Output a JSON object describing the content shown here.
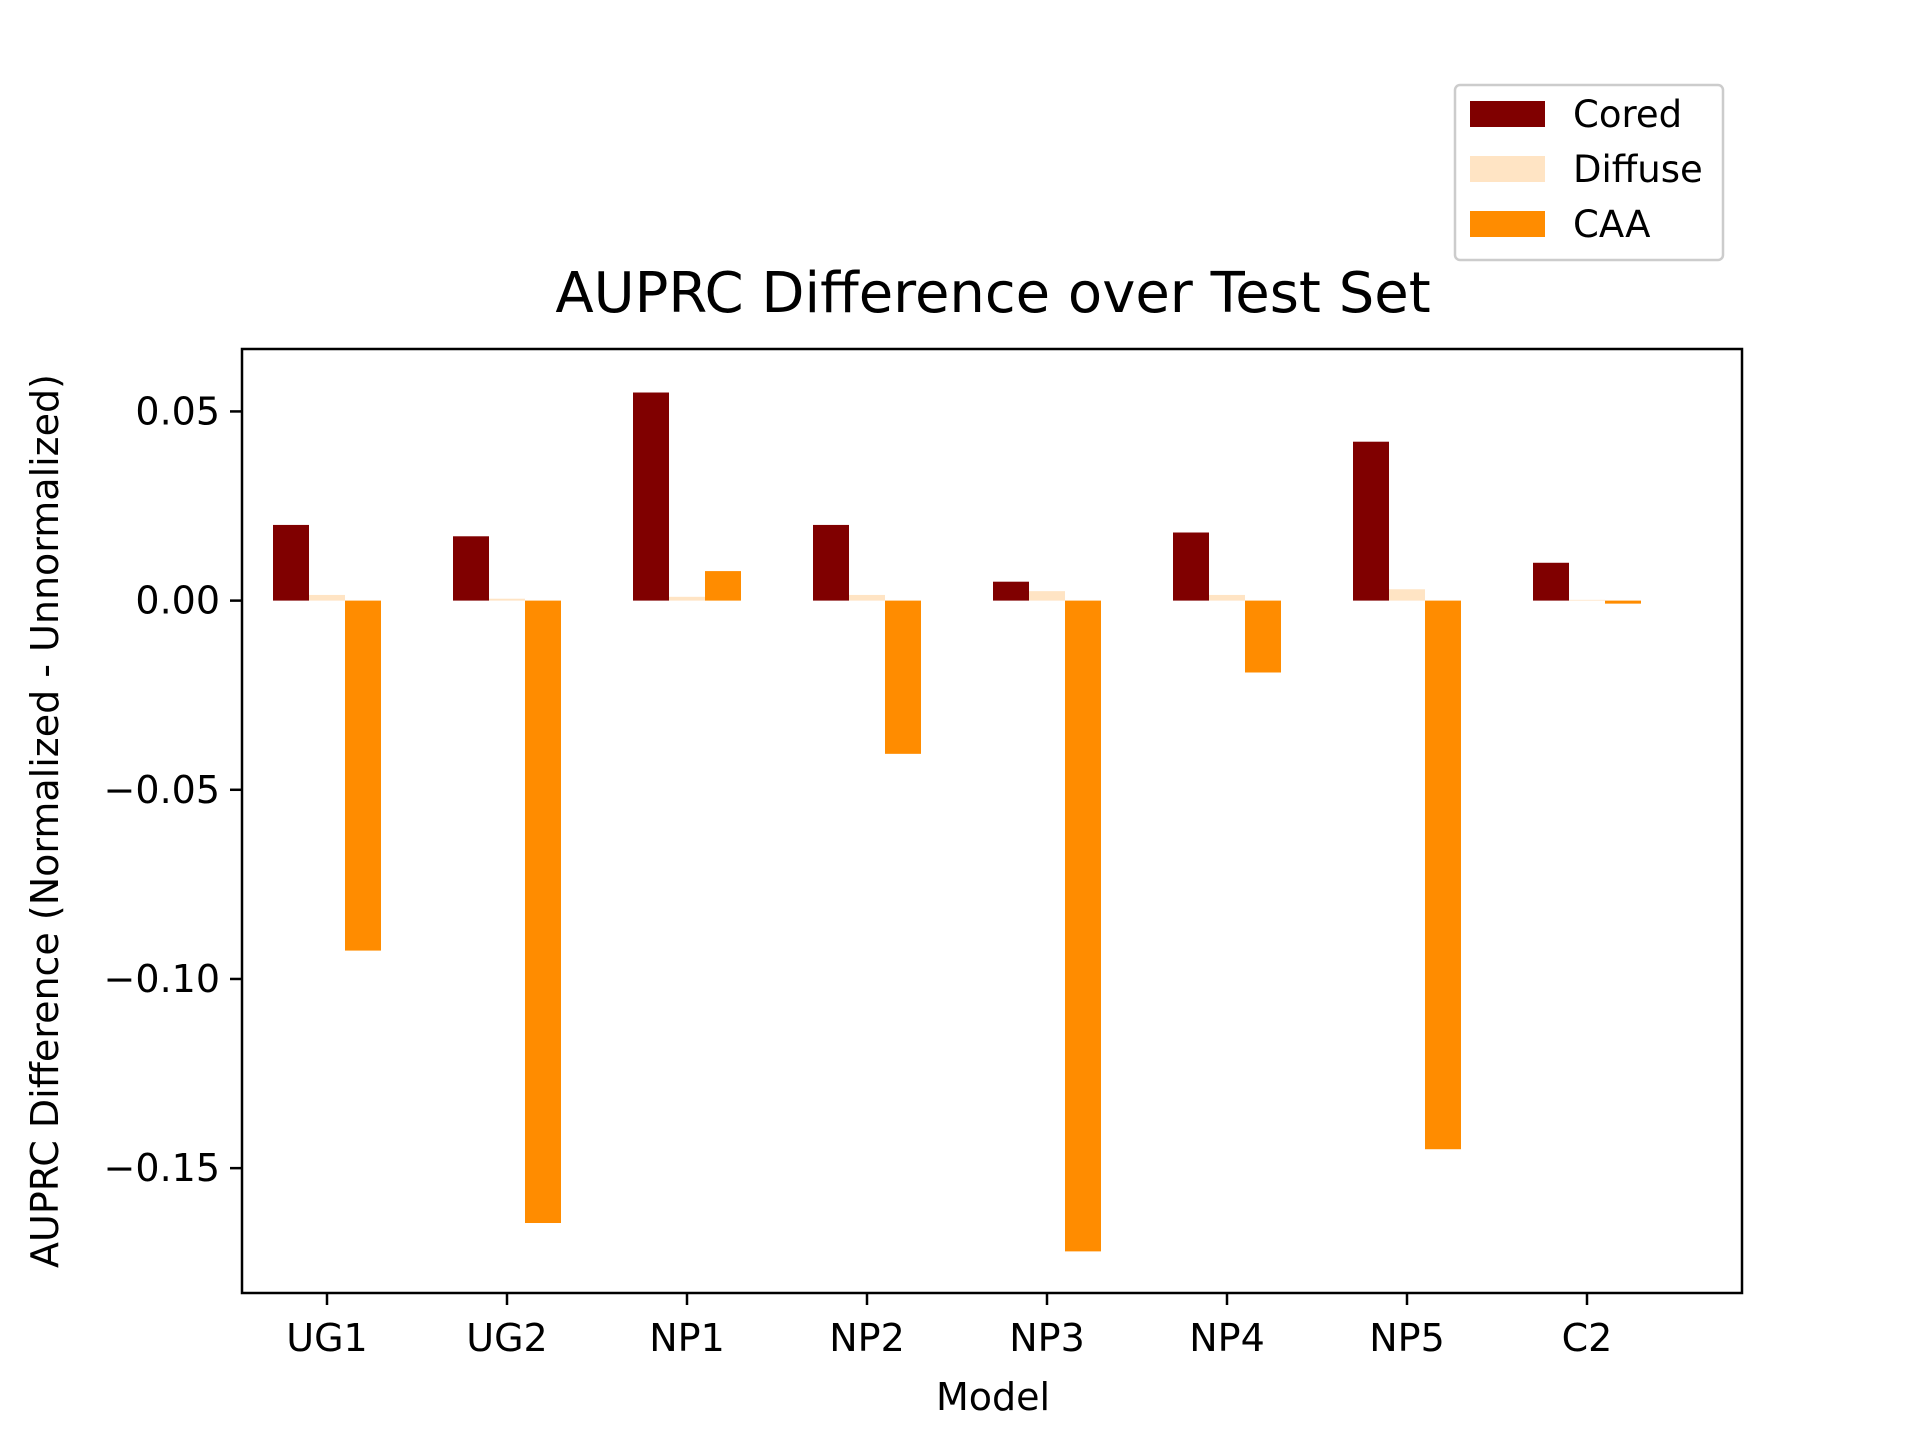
{
  "chart_data": {
    "type": "bar",
    "title": "AUPRC Difference over Test Set",
    "xlabel": "Model",
    "ylabel": "AUPRC Difference (Normalized - Unnormalized)",
    "categories": [
      "UG1",
      "UG2",
      "NP1",
      "NP2",
      "NP3",
      "NP4",
      "NP5",
      "C2"
    ],
    "series": [
      {
        "name": "Cored",
        "color": "#800000",
        "values": [
          0.02,
          0.017,
          0.055,
          0.02,
          0.005,
          0.018,
          0.042,
          0.01
        ]
      },
      {
        "name": "Diffuse",
        "color": "#ffe4c4",
        "values": [
          0.0015,
          0.0005,
          0.001,
          0.0015,
          0.0025,
          0.0015,
          0.003,
          0.0002
        ]
      },
      {
        "name": "CAA",
        "color": "#ff8c00",
        "values": [
          -0.0925,
          -0.1645,
          0.0078,
          -0.0405,
          -0.172,
          -0.019,
          -0.145,
          -0.0008
        ]
      }
    ],
    "ylim": [
      -0.183,
      0.0665
    ],
    "yticks": [
      0.05,
      0.0,
      -0.05,
      -0.1,
      -0.15
    ],
    "ytick_labels": [
      "0.05",
      "0.00",
      "−0.05",
      "−0.10",
      "−0.15"
    ],
    "legend_position": "top-right, above plot",
    "grid": false
  }
}
